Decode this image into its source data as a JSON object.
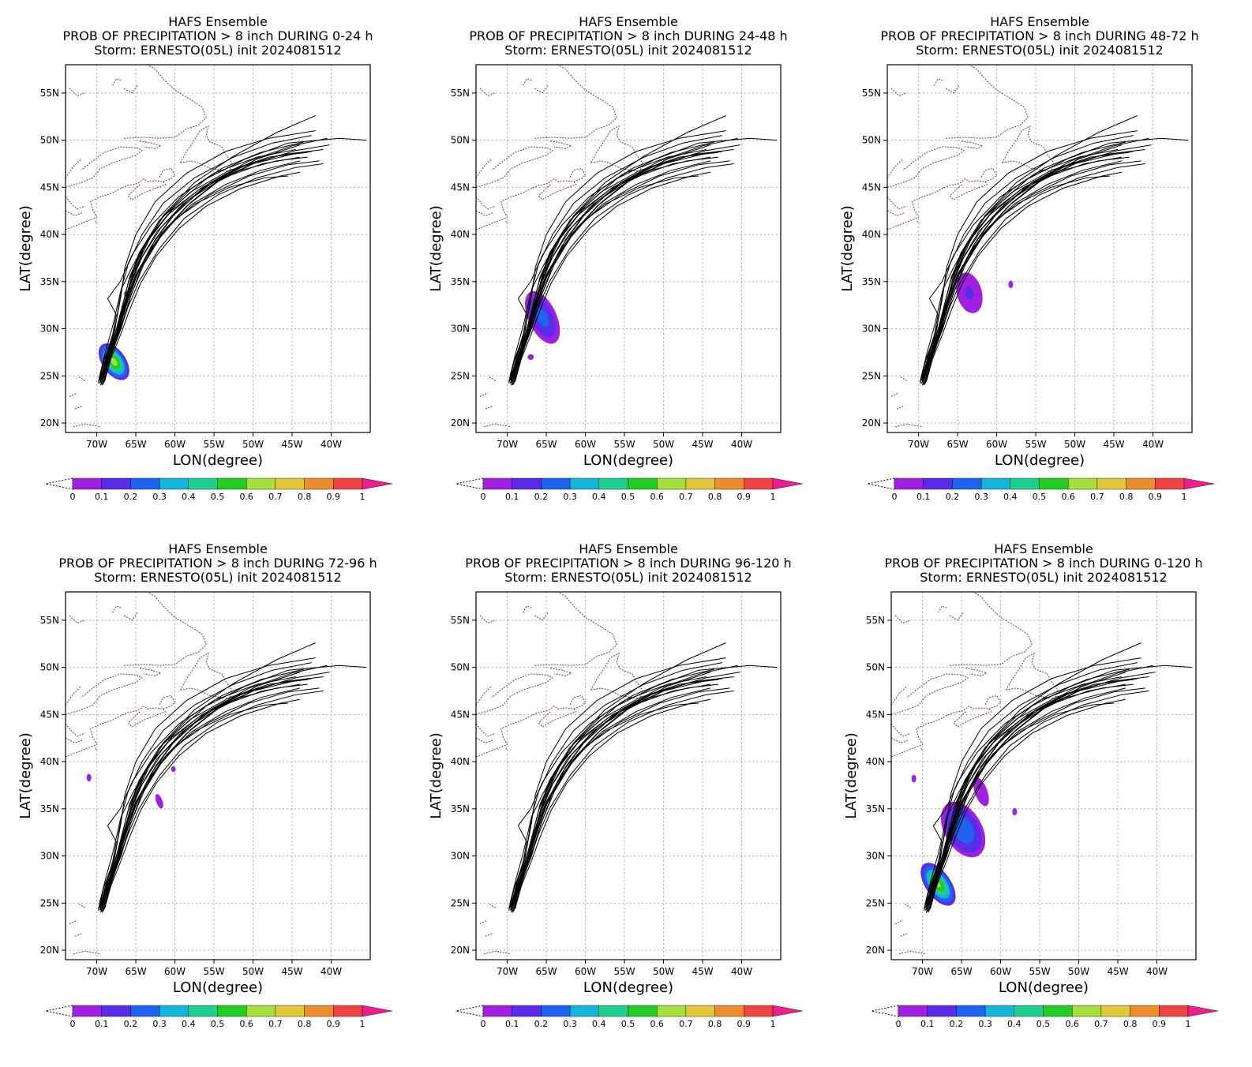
{
  "colors": {
    "track": "#000000",
    "coast": "#7a3b2e",
    "grid": "#aaaaaa",
    "colorbar": [
      "#a01fe0",
      "#5a2be8",
      "#1f64f0",
      "#15b4d9",
      "#1fcf8f",
      "#22cc22",
      "#a5df3c",
      "#e0c83a",
      "#eb8d2d",
      "#ee4444",
      "#ee1e8c"
    ]
  },
  "chart_data": [
    {
      "type": "heatmap",
      "title": "HAFS Ensemble",
      "subtitle": "PROB OF PRECIPITATION > 8 inch DURING  0-24 h",
      "storm_line": "Storm: ERNESTO(05L) init 2024081512",
      "xlabel": "LON(degree)",
      "ylabel": "LAT(degree)",
      "xlim": [
        -74,
        -35
      ],
      "ylim": [
        19,
        58
      ],
      "x_ticks": [
        "70W",
        "65W",
        "60W",
        "55W",
        "50W",
        "45W",
        "40W"
      ],
      "y_ticks": [
        "20N",
        "25N",
        "30N",
        "35N",
        "40N",
        "45N",
        "50N",
        "55N"
      ],
      "grid": true,
      "colorbar_ticks": [
        "0",
        "0.1",
        "0.2",
        "0.3",
        "0.4",
        "0.5",
        "0.6",
        "0.7",
        "0.8",
        "0.9",
        "1"
      ],
      "prob_areas": [
        {
          "lon": -67.8,
          "lat": 26.5,
          "rx": 1.5,
          "ry": 2.2,
          "rot": 35,
          "max": 0.65
        },
        {
          "lon": -66.2,
          "lat": 33.7,
          "rx": 0.3,
          "ry": 0.3,
          "rot": 0,
          "max": 0.05
        }
      ]
    },
    {
      "type": "heatmap",
      "title": "HAFS Ensemble",
      "subtitle": "PROB OF PRECIPITATION > 8 inch DURING 24-48 h",
      "storm_line": "Storm: ERNESTO(05L) init 2024081512",
      "xlabel": "LON(degree)",
      "ylabel": "LAT(degree)",
      "xlim": [
        -74,
        -35
      ],
      "ylim": [
        19,
        58
      ],
      "x_ticks": [
        "70W",
        "65W",
        "60W",
        "55W",
        "50W",
        "45W",
        "40W"
      ],
      "y_ticks": [
        "20N",
        "25N",
        "30N",
        "35N",
        "40N",
        "45N",
        "50N",
        "55N"
      ],
      "grid": true,
      "colorbar_ticks": [
        "0",
        "0.1",
        "0.2",
        "0.3",
        "0.4",
        "0.5",
        "0.6",
        "0.7",
        "0.8",
        "0.9",
        "1"
      ],
      "prob_areas": [
        {
          "lon": -65.5,
          "lat": 31.2,
          "rx": 1.8,
          "ry": 3.0,
          "rot": 25,
          "max": 0.25
        },
        {
          "lon": -67.0,
          "lat": 27.0,
          "rx": 0.4,
          "ry": 0.3,
          "rot": 0,
          "max": 0.05
        }
      ]
    },
    {
      "type": "heatmap",
      "title": "HAFS Ensemble",
      "subtitle": "PROB OF PRECIPITATION > 8 inch DURING 48-72 h",
      "storm_line": "Storm: ERNESTO(05L) init 2024081512",
      "xlabel": "LON(degree)",
      "ylabel": "LAT(degree)",
      "xlim": [
        -74,
        -35
      ],
      "ylim": [
        19,
        58
      ],
      "x_ticks": [
        "70W",
        "65W",
        "60W",
        "55W",
        "50W",
        "45W",
        "40W"
      ],
      "y_ticks": [
        "20N",
        "25N",
        "30N",
        "35N",
        "40N",
        "45N",
        "50N",
        "55N"
      ],
      "grid": true,
      "colorbar_ticks": [
        "0",
        "0.1",
        "0.2",
        "0.3",
        "0.4",
        "0.5",
        "0.6",
        "0.7",
        "0.8",
        "0.9",
        "1"
      ],
      "prob_areas": [
        {
          "lon": -63.5,
          "lat": 33.8,
          "rx": 1.6,
          "ry": 2.2,
          "rot": 15,
          "max": 0.12
        },
        {
          "lon": -58.2,
          "lat": 34.7,
          "rx": 0.3,
          "ry": 0.4,
          "rot": 0,
          "max": 0.05
        }
      ]
    },
    {
      "type": "heatmap",
      "title": "HAFS Ensemble",
      "subtitle": "PROB OF PRECIPITATION > 8 inch DURING 72-96 h",
      "storm_line": "Storm: ERNESTO(05L) init 2024081512",
      "xlabel": "LON(degree)",
      "ylabel": "LAT(degree)",
      "xlim": [
        -74,
        -35
      ],
      "ylim": [
        19,
        58
      ],
      "x_ticks": [
        "70W",
        "65W",
        "60W",
        "55W",
        "50W",
        "45W",
        "40W"
      ],
      "y_ticks": [
        "20N",
        "25N",
        "30N",
        "35N",
        "40N",
        "45N",
        "50N",
        "55N"
      ],
      "grid": true,
      "colorbar_ticks": [
        "0",
        "0.1",
        "0.2",
        "0.3",
        "0.4",
        "0.5",
        "0.6",
        "0.7",
        "0.8",
        "0.9",
        "1"
      ],
      "prob_areas": [
        {
          "lon": -71.0,
          "lat": 38.3,
          "rx": 0.3,
          "ry": 0.4,
          "rot": 0,
          "max": 0.05
        },
        {
          "lon": -62.0,
          "lat": 35.8,
          "rx": 0.4,
          "ry": 0.8,
          "rot": 20,
          "max": 0.06
        },
        {
          "lon": -60.2,
          "lat": 39.2,
          "rx": 0.3,
          "ry": 0.3,
          "rot": 0,
          "max": 0.04
        }
      ]
    },
    {
      "type": "heatmap",
      "title": "HAFS Ensemble",
      "subtitle": "PROB OF PRECIPITATION > 8 inch DURING 96-120 h",
      "storm_line": "Storm: ERNESTO(05L) init 2024081512",
      "xlabel": "LON(degree)",
      "ylabel": "LAT(degree)",
      "xlim": [
        -74,
        -35
      ],
      "ylim": [
        19,
        58
      ],
      "x_ticks": [
        "70W",
        "65W",
        "60W",
        "55W",
        "50W",
        "45W",
        "40W"
      ],
      "y_ticks": [
        "20N",
        "25N",
        "30N",
        "35N",
        "40N",
        "45N",
        "50N",
        "55N"
      ],
      "grid": true,
      "colorbar_ticks": [
        "0",
        "0.1",
        "0.2",
        "0.3",
        "0.4",
        "0.5",
        "0.6",
        "0.7",
        "0.8",
        "0.9",
        "1"
      ],
      "prob_areas": []
    },
    {
      "type": "heatmap",
      "title": "HAFS Ensemble",
      "subtitle": "PROB OF PRECIPITATION > 8 inch DURING 0-120 h",
      "storm_line": "Storm: ERNESTO(05L) init 2024081512",
      "xlabel": "LON(degree)",
      "ylabel": "LAT(degree)",
      "xlim": [
        -74,
        -35
      ],
      "ylim": [
        19,
        58
      ],
      "x_ticks": [
        "70W",
        "65W",
        "60W",
        "55W",
        "50W",
        "45W",
        "40W"
      ],
      "y_ticks": [
        "20N",
        "25N",
        "30N",
        "35N",
        "40N",
        "45N",
        "50N",
        "55N"
      ],
      "grid": true,
      "colorbar_ticks": [
        "0",
        "0.1",
        "0.2",
        "0.3",
        "0.4",
        "0.5",
        "0.6",
        "0.7",
        "0.8",
        "0.9",
        "1"
      ],
      "prob_areas": [
        {
          "lon": -68.0,
          "lat": 27.0,
          "rx": 1.6,
          "ry": 2.6,
          "rot": 35,
          "max": 0.62
        },
        {
          "lon": -64.8,
          "lat": 32.8,
          "rx": 2.4,
          "ry": 3.2,
          "rot": 30,
          "max": 0.3
        },
        {
          "lon": -62.5,
          "lat": 36.8,
          "rx": 0.8,
          "ry": 1.6,
          "rot": 20,
          "max": 0.08
        },
        {
          "lon": -58.2,
          "lat": 34.7,
          "rx": 0.3,
          "ry": 0.4,
          "rot": 0,
          "max": 0.05
        },
        {
          "lon": -71.1,
          "lat": 38.2,
          "rx": 0.3,
          "ry": 0.4,
          "rot": 0,
          "max": 0.05
        }
      ]
    }
  ]
}
